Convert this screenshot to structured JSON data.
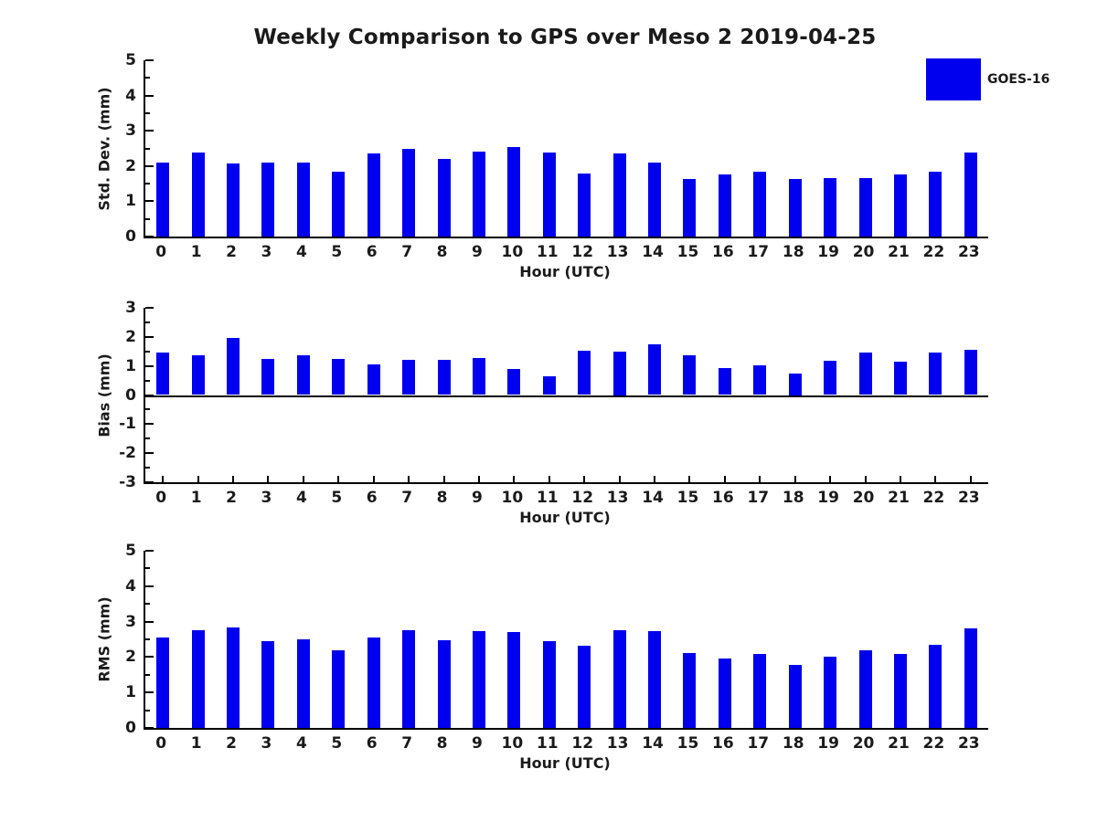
{
  "title": "Weekly Comparison to GPS over Meso 2 2019-04-25",
  "legend": {
    "label": "GOES-16",
    "swatch_color": "#0000EE"
  },
  "colors": {
    "bar": "#0000EE",
    "axis": "#000000",
    "text": "#1a1a1a",
    "background": "#ffffff"
  },
  "chart_data": [
    {
      "type": "bar",
      "ylabel": "Std. Dev. (mm)",
      "xlabel": "Hour (UTC)",
      "ylim": [
        0,
        5
      ],
      "yticks": [
        0,
        1,
        2,
        3,
        4,
        5
      ],
      "grid": false,
      "legend_position": "upper-right-outside",
      "series_name": "GOES-16",
      "categories": [
        "0",
        "1",
        "2",
        "3",
        "4",
        "5",
        "6",
        "7",
        "8",
        "9",
        "10",
        "11",
        "12",
        "13",
        "14",
        "15",
        "16",
        "17",
        "18",
        "19",
        "20",
        "21",
        "22",
        "23"
      ],
      "values": [
        2.1,
        2.38,
        2.08,
        2.1,
        2.1,
        1.83,
        2.35,
        2.48,
        2.2,
        2.42,
        2.55,
        2.38,
        1.78,
        2.35,
        2.1,
        1.62,
        1.75,
        1.83,
        1.62,
        1.65,
        1.65,
        1.75,
        1.83,
        2.38
      ]
    },
    {
      "type": "bar",
      "ylabel": "Bias (mm)",
      "xlabel": "Hour (UTC)",
      "ylim": [
        -3,
        3
      ],
      "yticks": [
        -3,
        -2,
        -1,
        0,
        1,
        2,
        3
      ],
      "grid": false,
      "series_name": "GOES-16",
      "categories": [
        "0",
        "1",
        "2",
        "3",
        "4",
        "5",
        "6",
        "7",
        "8",
        "9",
        "10",
        "11",
        "12",
        "13",
        "14",
        "15",
        "16",
        "17",
        "18",
        "19",
        "20",
        "21",
        "22",
        "23"
      ],
      "values": [
        1.45,
        1.38,
        1.95,
        1.25,
        1.38,
        1.25,
        1.05,
        1.22,
        1.22,
        1.28,
        0.9,
        0.65,
        1.53,
        1.5,
        1.75,
        1.38,
        0.92,
        1.03,
        0.75,
        1.18,
        1.47,
        1.15,
        1.47,
        1.57
      ]
    },
    {
      "type": "bar",
      "ylabel": "RMS (mm)",
      "xlabel": "Hour (UTC)",
      "ylim": [
        0,
        5
      ],
      "yticks": [
        0,
        1,
        2,
        3,
        4,
        5
      ],
      "grid": false,
      "series_name": "GOES-16",
      "categories": [
        "0",
        "1",
        "2",
        "3",
        "4",
        "5",
        "6",
        "7",
        "8",
        "9",
        "10",
        "11",
        "12",
        "13",
        "14",
        "15",
        "16",
        "17",
        "18",
        "19",
        "20",
        "21",
        "22",
        "23"
      ],
      "values": [
        2.55,
        2.75,
        2.84,
        2.46,
        2.51,
        2.2,
        2.55,
        2.77,
        2.48,
        2.74,
        2.7,
        2.46,
        2.32,
        2.76,
        2.72,
        2.12,
        1.97,
        2.1,
        1.78,
        2.01,
        2.2,
        2.1,
        2.35,
        2.81
      ]
    }
  ]
}
